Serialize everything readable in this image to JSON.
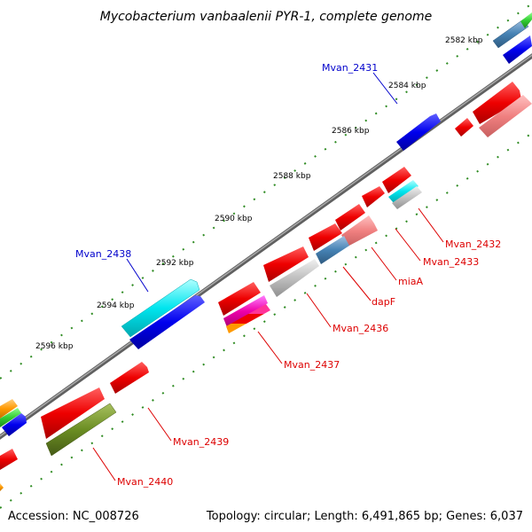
{
  "title": "Mycobacterium vanbaalenii PYR-1, complete genome",
  "footer": {
    "accession": "Accession: NC_008726",
    "topology": "Topology: circular; Length: 6,491,865 bp; Genes: 6,037"
  },
  "ticks": [
    "2582 kbp",
    "2584 kbp",
    "2586 kbp",
    "2588 kbp",
    "2590 kbp",
    "2592 kbp",
    "2594 kbp",
    "2596 kbp"
  ],
  "labels": {
    "forward": [
      "Mvan_2431",
      "Mvan_2438"
    ],
    "reverse": [
      "Mvan_2432",
      "Mvan_2433",
      "miaA",
      "dapF",
      "Mvan_2436",
      "Mvan_2437",
      "Mvan_2439",
      "Mvan_2440"
    ]
  },
  "colors": {
    "backbone": "#808080",
    "tick": "#2e8b22",
    "forward_label": "#0000cc",
    "reverse_label": "#dd0000",
    "cds": "#ee0000",
    "blue": "#0000ee",
    "cyan": "#00e5ee",
    "olive": "#6b8e23"
  }
}
